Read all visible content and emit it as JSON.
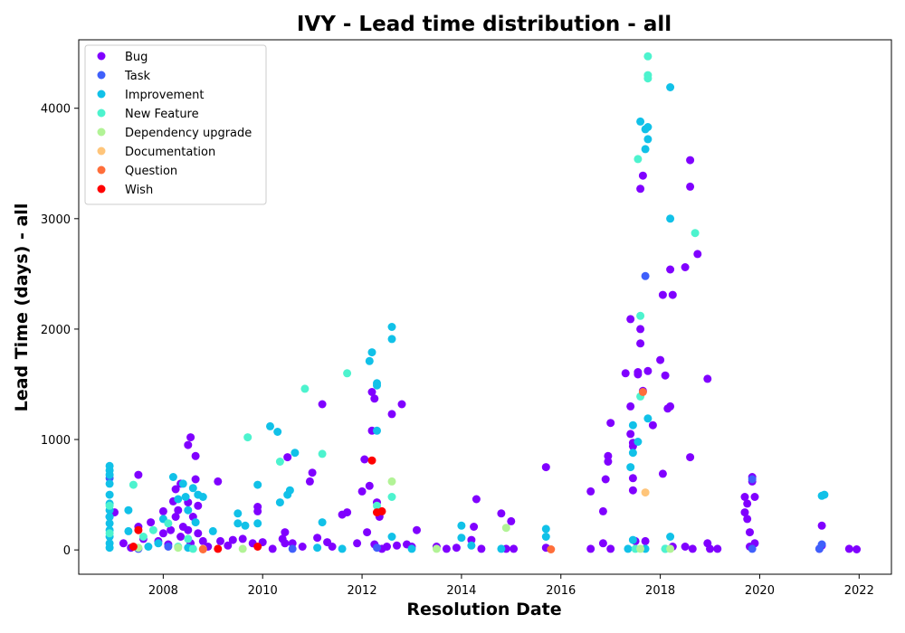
{
  "chart_data": {
    "type": "scatter",
    "title": "IVY - Lead time distribution - all",
    "xlabel": "Resolution Date",
    "ylabel": "Lead Time (days) - all",
    "xlim": [
      2006.3,
      2022.65
    ],
    "ylim": [
      -220,
      4620
    ],
    "xticks": [
      2008,
      2010,
      2012,
      2014,
      2016,
      2018,
      2020,
      2022
    ],
    "yticks": [
      0,
      1000,
      2000,
      3000,
      4000
    ],
    "legend_position": "top-left",
    "grid": false,
    "series": [
      {
        "name": "Bug",
        "color": "#8000ff",
        "points": [
          [
            2007.02,
            340
          ],
          [
            2007.2,
            60
          ],
          [
            2007.35,
            20
          ],
          [
            2007.5,
            210
          ],
          [
            2007.5,
            680
          ],
          [
            2007.6,
            100
          ],
          [
            2007.75,
            250
          ],
          [
            2007.9,
            80
          ],
          [
            2008.0,
            150
          ],
          [
            2008.0,
            350
          ],
          [
            2008.1,
            50
          ],
          [
            2008.15,
            180
          ],
          [
            2008.2,
            440
          ],
          [
            2008.25,
            300
          ],
          [
            2008.25,
            550
          ],
          [
            2008.3,
            360
          ],
          [
            2008.35,
            600
          ],
          [
            2008.35,
            120
          ],
          [
            2008.4,
            210
          ],
          [
            2008.5,
            950
          ],
          [
            2008.5,
            430
          ],
          [
            2008.5,
            180
          ],
          [
            2008.55,
            60
          ],
          [
            2008.55,
            1020
          ],
          [
            2008.6,
            300
          ],
          [
            2008.65,
            640
          ],
          [
            2008.65,
            850
          ],
          [
            2008.7,
            400
          ],
          [
            2008.7,
            150
          ],
          [
            2008.8,
            80
          ],
          [
            2008.9,
            30
          ],
          [
            2009.1,
            620
          ],
          [
            2009.15,
            80
          ],
          [
            2009.3,
            40
          ],
          [
            2009.4,
            90
          ],
          [
            2009.6,
            100
          ],
          [
            2009.8,
            60
          ],
          [
            2009.9,
            390
          ],
          [
            2009.9,
            350
          ],
          [
            2010.0,
            70
          ],
          [
            2010.2,
            10
          ],
          [
            2010.4,
            100
          ],
          [
            2010.45,
            60
          ],
          [
            2010.45,
            160
          ],
          [
            2010.5,
            840
          ],
          [
            2010.6,
            60
          ],
          [
            2010.8,
            30
          ],
          [
            2010.95,
            620
          ],
          [
            2011.0,
            700
          ],
          [
            2011.1,
            110
          ],
          [
            2011.2,
            1320
          ],
          [
            2011.3,
            70
          ],
          [
            2011.4,
            30
          ],
          [
            2011.6,
            320
          ],
          [
            2011.7,
            340
          ],
          [
            2011.9,
            60
          ],
          [
            2012.0,
            530
          ],
          [
            2012.05,
            820
          ],
          [
            2012.1,
            160
          ],
          [
            2012.15,
            580
          ],
          [
            2012.2,
            1080
          ],
          [
            2012.2,
            1430
          ],
          [
            2012.25,
            1370
          ],
          [
            2012.25,
            50
          ],
          [
            2012.3,
            430
          ],
          [
            2012.35,
            300
          ],
          [
            2012.4,
            10
          ],
          [
            2012.5,
            30
          ],
          [
            2012.6,
            1230
          ],
          [
            2012.7,
            40
          ],
          [
            2012.8,
            1320
          ],
          [
            2012.9,
            50
          ],
          [
            2013.0,
            30
          ],
          [
            2013.1,
            180
          ],
          [
            2013.5,
            30
          ],
          [
            2013.7,
            10
          ],
          [
            2013.9,
            20
          ],
          [
            2014.2,
            90
          ],
          [
            2014.25,
            210
          ],
          [
            2014.3,
            460
          ],
          [
            2014.4,
            10
          ],
          [
            2014.8,
            330
          ],
          [
            2014.9,
            10
          ],
          [
            2015.0,
            260
          ],
          [
            2015.05,
            10
          ],
          [
            2015.7,
            20
          ],
          [
            2015.7,
            750
          ],
          [
            2016.6,
            530
          ],
          [
            2016.6,
            10
          ],
          [
            2016.85,
            60
          ],
          [
            2016.85,
            350
          ],
          [
            2016.9,
            640
          ],
          [
            2016.95,
            850
          ],
          [
            2016.95,
            800
          ],
          [
            2017.0,
            1150
          ],
          [
            2017.0,
            10
          ],
          [
            2017.3,
            1600
          ],
          [
            2017.4,
            2090
          ],
          [
            2017.4,
            1300
          ],
          [
            2017.4,
            1050
          ],
          [
            2017.45,
            940
          ],
          [
            2017.45,
            970
          ],
          [
            2017.45,
            540
          ],
          [
            2017.45,
            650
          ],
          [
            2017.5,
            80
          ],
          [
            2017.55,
            1590
          ],
          [
            2017.55,
            1610
          ],
          [
            2017.6,
            3270
          ],
          [
            2017.6,
            2000
          ],
          [
            2017.6,
            1870
          ],
          [
            2017.65,
            3390
          ],
          [
            2017.65,
            1440
          ],
          [
            2017.7,
            80
          ],
          [
            2017.75,
            1620
          ],
          [
            2017.85,
            1130
          ],
          [
            2018.0,
            1720
          ],
          [
            2018.05,
            2310
          ],
          [
            2018.05,
            690
          ],
          [
            2018.1,
            1580
          ],
          [
            2018.15,
            1280
          ],
          [
            2018.2,
            1300
          ],
          [
            2018.2,
            2540
          ],
          [
            2018.25,
            2310
          ],
          [
            2018.25,
            30
          ],
          [
            2018.5,
            2560
          ],
          [
            2018.5,
            30
          ],
          [
            2018.6,
            3530
          ],
          [
            2018.6,
            3290
          ],
          [
            2018.6,
            840
          ],
          [
            2018.65,
            10
          ],
          [
            2018.75,
            2680
          ],
          [
            2018.95,
            1550
          ],
          [
            2018.95,
            60
          ],
          [
            2019.0,
            10
          ],
          [
            2019.15,
            10
          ],
          [
            2019.7,
            480
          ],
          [
            2019.7,
            340
          ],
          [
            2019.75,
            420
          ],
          [
            2019.75,
            280
          ],
          [
            2019.8,
            30
          ],
          [
            2019.8,
            160
          ],
          [
            2019.85,
            660
          ],
          [
            2019.85,
            620
          ],
          [
            2019.9,
            480
          ],
          [
            2019.9,
            60
          ],
          [
            2021.2,
            10
          ],
          [
            2021.25,
            220
          ],
          [
            2021.25,
            40
          ],
          [
            2021.8,
            10
          ],
          [
            2021.95,
            5
          ]
        ]
      },
      {
        "name": "Task",
        "color": "#3f60fb",
        "points": [
          [
            2006.92,
            650
          ],
          [
            2006.92,
            300
          ],
          [
            2007.5,
            10
          ],
          [
            2008.1,
            30
          ],
          [
            2010.6,
            10
          ],
          [
            2012.3,
            20
          ],
          [
            2017.7,
            2480
          ],
          [
            2019.85,
            640
          ],
          [
            2019.85,
            10
          ],
          [
            2021.2,
            10
          ],
          [
            2021.25,
            50
          ]
        ]
      },
      {
        "name": "Improvement",
        "color": "#11c1e8",
        "points": [
          [
            2006.92,
            760
          ],
          [
            2006.92,
            720
          ],
          [
            2006.92,
            680
          ],
          [
            2006.92,
            600
          ],
          [
            2006.92,
            500
          ],
          [
            2006.92,
            420
          ],
          [
            2006.92,
            360
          ],
          [
            2006.92,
            300
          ],
          [
            2006.92,
            240
          ],
          [
            2006.92,
            180
          ],
          [
            2006.92,
            120
          ],
          [
            2006.92,
            60
          ],
          [
            2006.92,
            20
          ],
          [
            2007.3,
            360
          ],
          [
            2007.3,
            170
          ],
          [
            2007.7,
            30
          ],
          [
            2007.9,
            60
          ],
          [
            2008.0,
            280
          ],
          [
            2008.2,
            660
          ],
          [
            2008.3,
            460
          ],
          [
            2008.4,
            600
          ],
          [
            2008.45,
            480
          ],
          [
            2008.5,
            360
          ],
          [
            2008.5,
            20
          ],
          [
            2008.6,
            560
          ],
          [
            2008.65,
            250
          ],
          [
            2008.7,
            500
          ],
          [
            2008.8,
            480
          ],
          [
            2009.0,
            170
          ],
          [
            2009.5,
            330
          ],
          [
            2009.5,
            240
          ],
          [
            2009.65,
            220
          ],
          [
            2009.9,
            240
          ],
          [
            2009.9,
            590
          ],
          [
            2010.15,
            1120
          ],
          [
            2010.3,
            1070
          ],
          [
            2010.35,
            430
          ],
          [
            2010.5,
            500
          ],
          [
            2010.55,
            540
          ],
          [
            2010.65,
            880
          ],
          [
            2011.2,
            250
          ],
          [
            2011.1,
            20
          ],
          [
            2011.6,
            10
          ],
          [
            2012.15,
            1710
          ],
          [
            2012.2,
            1790
          ],
          [
            2012.3,
            1490
          ],
          [
            2012.3,
            1510
          ],
          [
            2012.3,
            1080
          ],
          [
            2012.6,
            1910
          ],
          [
            2012.6,
            2020
          ],
          [
            2012.6,
            120
          ],
          [
            2013.0,
            10
          ],
          [
            2014.0,
            220
          ],
          [
            2014.0,
            110
          ],
          [
            2014.2,
            40
          ],
          [
            2014.8,
            10
          ],
          [
            2015.7,
            190
          ],
          [
            2015.7,
            120
          ],
          [
            2017.35,
            10
          ],
          [
            2017.4,
            750
          ],
          [
            2017.45,
            90
          ],
          [
            2017.45,
            880
          ],
          [
            2017.45,
            1130
          ],
          [
            2017.55,
            980
          ],
          [
            2017.6,
            3880
          ],
          [
            2017.7,
            3630
          ],
          [
            2017.7,
            3810
          ],
          [
            2017.75,
            3830
          ],
          [
            2017.75,
            3720
          ],
          [
            2017.75,
            1190
          ],
          [
            2017.7,
            10
          ],
          [
            2018.2,
            4190
          ],
          [
            2018.2,
            3000
          ],
          [
            2018.2,
            120
          ],
          [
            2018.1,
            10
          ],
          [
            2021.25,
            490
          ],
          [
            2021.3,
            500
          ]
        ]
      },
      {
        "name": "New Feature",
        "color": "#4df3ce",
        "points": [
          [
            2006.92,
            400
          ],
          [
            2006.92,
            150
          ],
          [
            2007.4,
            590
          ],
          [
            2007.6,
            120
          ],
          [
            2007.8,
            180
          ],
          [
            2008.1,
            240
          ],
          [
            2008.3,
            30
          ],
          [
            2008.5,
            100
          ],
          [
            2008.6,
            10
          ],
          [
            2009.7,
            1020
          ],
          [
            2010.35,
            800
          ],
          [
            2010.85,
            1460
          ],
          [
            2011.2,
            870
          ],
          [
            2011.7,
            1600
          ],
          [
            2012.3,
            400
          ],
          [
            2012.6,
            480
          ],
          [
            2017.5,
            10
          ],
          [
            2017.55,
            3540
          ],
          [
            2017.6,
            2120
          ],
          [
            2017.6,
            1390
          ],
          [
            2017.75,
            4470
          ],
          [
            2017.75,
            4300
          ],
          [
            2017.75,
            4270
          ],
          [
            2018.7,
            2870
          ],
          [
            2018.1,
            10
          ]
        ]
      },
      {
        "name": "Dependency upgrade",
        "color": "#b2f396",
        "points": [
          [
            2007.5,
            20
          ],
          [
            2008.3,
            20
          ],
          [
            2009.6,
            10
          ],
          [
            2012.6,
            620
          ],
          [
            2013.5,
            10
          ],
          [
            2014.9,
            200
          ],
          [
            2017.6,
            10
          ],
          [
            2018.2,
            10
          ]
        ]
      },
      {
        "name": "Documentation",
        "color": "#ffc57a",
        "points": [
          [
            2008.8,
            10
          ],
          [
            2017.7,
            520
          ]
        ]
      },
      {
        "name": "Question",
        "color": "#ff6e3a",
        "points": [
          [
            2008.8,
            5
          ],
          [
            2015.8,
            5
          ],
          [
            2017.65,
            1430
          ]
        ]
      },
      {
        "name": "Wish",
        "color": "#ff0000",
        "points": [
          [
            2007.4,
            30
          ],
          [
            2007.5,
            180
          ],
          [
            2009.1,
            10
          ],
          [
            2009.9,
            30
          ],
          [
            2012.2,
            810
          ],
          [
            2012.3,
            340
          ],
          [
            2012.4,
            350
          ]
        ]
      }
    ]
  }
}
